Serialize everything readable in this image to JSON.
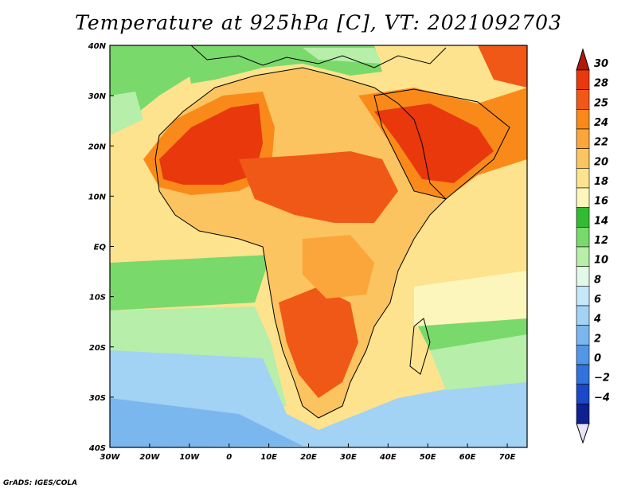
{
  "title": "Temperature at 925hPa [C], VT: 2021092703",
  "footer": "GrADS: IGES/COLA",
  "map": {
    "region": "Africa",
    "lon_labels": [
      "30W",
      "20W",
      "10W",
      "0",
      "10E",
      "20E",
      "30E",
      "40E",
      "50E",
      "60E",
      "70E"
    ],
    "lat_labels": [
      "40N",
      "30N",
      "20N",
      "10N",
      "EQ",
      "10S",
      "20S",
      "30S",
      "40S"
    ]
  },
  "colorbar": {
    "labels": [
      "30",
      "28",
      "25",
      "24",
      "22",
      "20",
      "18",
      "16",
      "14",
      "12",
      "10",
      "8",
      "6",
      "4",
      "2",
      "0",
      "-2",
      "-4"
    ],
    "colors": [
      "#e8380c",
      "#f05818",
      "#f98a1a",
      "#fba63a",
      "#fbc460",
      "#fde38e",
      "#fdf6bc",
      "#33bb33",
      "#7ad96b",
      "#b6eeaa",
      "#e1f9e6",
      "#c6e7f9",
      "#a2d2f4",
      "#7ab7ee",
      "#5496e6",
      "#3172dc",
      "#1a48c6",
      "#0f2090"
    ],
    "top_arrow_color": "#b01a0a",
    "bottom_arrow_color": "#e4e4fb"
  },
  "field_colors": {
    "ocean_cool": "#b6eeaa",
    "ocean_mid": "#7ad96b",
    "ocean_warm": "#fde38e",
    "ocean_cold": "#7ab7ee",
    "ocean_colder": "#5496e6",
    "land_hot": "#e8380c",
    "land_warm": "#f98a1a",
    "land_mild": "#fbc460",
    "land_cool": "#fde38e"
  }
}
